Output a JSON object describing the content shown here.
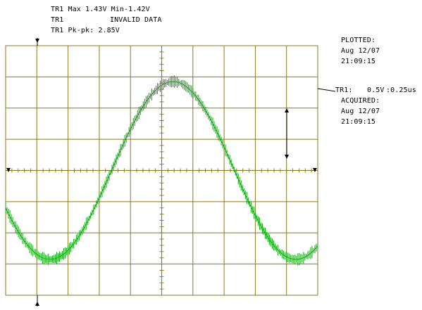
{
  "header": {
    "line1": "TR1 Max 1.43V Min-1.42V",
    "line2_label": "TR1",
    "line2_status": "INVALID DATA",
    "line3": "TR1 Pk-pk: 2.85V"
  },
  "side_panel": {
    "plotted_label": "PLOTTED:",
    "plotted_date": "Aug 12/07",
    "plotted_time": "21:09:15",
    "trace_label": "TR1:",
    "trace_volts": "0.5V",
    "trace_time": ":0.25us",
    "acquired_label": "ACQUIRED:",
    "acquired_date": "Aug 12/07",
    "acquired_time": "21:09:15"
  },
  "colors": {
    "grid": "#8a7a1e",
    "trace": "#10a010",
    "background": "#ffffff",
    "text": "#000000"
  },
  "chart_data": {
    "type": "line",
    "title": "",
    "xlabel": "",
    "ylabel": "",
    "divisions": {
      "x": 10,
      "y": 8
    },
    "volts_per_div": 0.5,
    "time_per_div_us": 0.25,
    "xlim_us": [
      0,
      2.5
    ],
    "ylim_v": [
      -2.0,
      2.0
    ],
    "grid": true,
    "series": [
      {
        "amplitude_v": 1.425,
        "period_us": 1.97,
        "phase_deg": 205,
        "noise_v": 0.1,
        "measured_max_v": 1.43,
        "measured_min_v": -1.42,
        "measured_pk_pk_v": 2.85
      }
    ]
  }
}
